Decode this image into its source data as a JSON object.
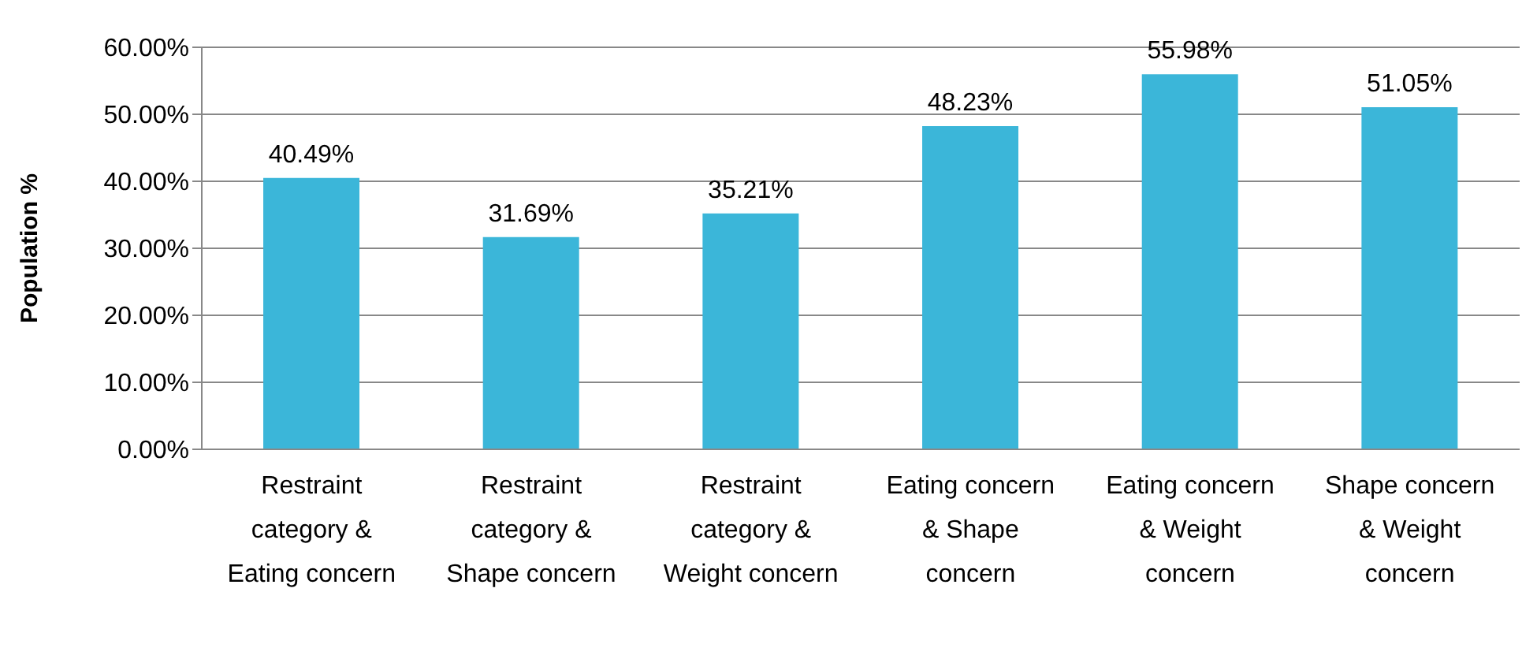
{
  "chart_data": {
    "type": "bar",
    "ylabel": "Population %",
    "categories": [
      "Restraint category & Eating concern",
      "Restraint category & Shape concern",
      "Restraint category & Weight concern",
      "Eating concern & Shape concern",
      "Eating concern & Weight concern",
      "Shape concern & Weight concern"
    ],
    "values": [
      40.49,
      31.69,
      35.21,
      48.23,
      55.98,
      51.05
    ],
    "value_labels": [
      "40.49%",
      "31.69%",
      "35.21%",
      "48.23%",
      "55.98%",
      "51.05%"
    ],
    "color": "#3bb6d9",
    "ylim": [
      0,
      60
    ],
    "yticks": [
      {
        "value": 0,
        "label": "0.00%"
      },
      {
        "value": 10,
        "label": "10.00%"
      },
      {
        "value": 20,
        "label": "20.00%"
      },
      {
        "value": 30,
        "label": "30.00%"
      },
      {
        "value": 40,
        "label": "40.00%"
      },
      {
        "value": 50,
        "label": "50.00%"
      },
      {
        "value": 60,
        "label": "60.00%"
      }
    ],
    "grid": "y",
    "legend": false
  }
}
